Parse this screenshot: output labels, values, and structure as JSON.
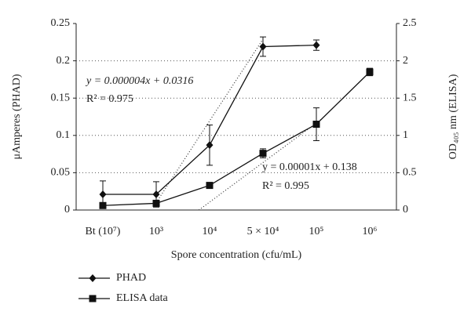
{
  "chart_data": {
    "type": "line",
    "categories": [
      "Bt (10⁷)",
      "10³",
      "10⁴",
      "5 × 10⁴",
      "10⁵",
      "10⁶"
    ],
    "xlabel": "Spore concentration (cfu/mL)",
    "ylabel": "μAmperes (PHAD)",
    "y2label": "OD₄₀₅ nm (ELISA)",
    "ylim": [
      0,
      0.25
    ],
    "yticks": [
      0,
      0.05,
      0.1,
      0.15,
      0.2,
      0.25
    ],
    "y2lim": [
      0,
      2.5
    ],
    "y2ticks": [
      0,
      0.5,
      1,
      1.5,
      2,
      2.5
    ],
    "grid": true,
    "series": [
      {
        "name": "PHAD",
        "color": "#111",
        "marker": "diamond",
        "axis": "y",
        "values": [
          0.021,
          0.021,
          0.087,
          0.219,
          0.221,
          null
        ],
        "errors": [
          0.018,
          0.017,
          0.027,
          0.013,
          0.007,
          null
        ]
      },
      {
        "name": "ELISA data",
        "color": "#111",
        "marker": "square",
        "axis": "y2",
        "values": [
          0.06,
          0.09,
          0.33,
          0.76,
          1.15,
          1.85
        ],
        "errors": [
          0.02,
          0.02,
          0.02,
          0.06,
          0.22,
          0.05
        ]
      }
    ],
    "trendlines": [
      {
        "axis": "y",
        "x": [
          1,
          3
        ],
        "values": [
          0.01,
          0.229
        ]
      },
      {
        "axis": "y2",
        "x": [
          1.8,
          4.1
        ],
        "values": [
          -0.04,
          1.22
        ]
      }
    ],
    "annotations": [
      "y = 0.000004x + 0.0316",
      "R² = 0.975",
      "y = 0.00001x + 0.138",
      "R² = 0.995"
    ]
  }
}
